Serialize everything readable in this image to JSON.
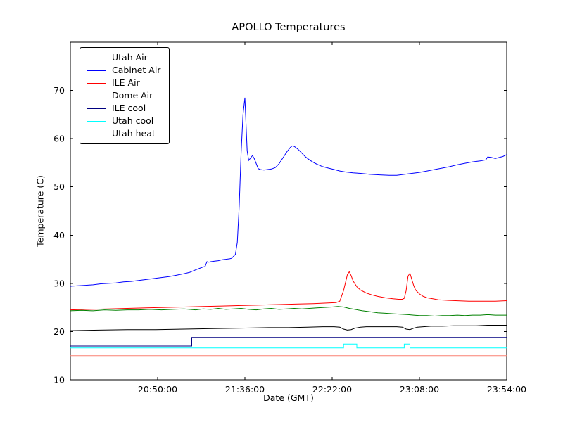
{
  "figure": {
    "background": "#ffffff"
  },
  "chart_data": {
    "type": "line",
    "title": "APOLLO Temperatures",
    "xlabel": "Date (GMT)",
    "ylabel": "Temperature (C)",
    "x_unit": "minutes after 20:04:00 GMT",
    "xlim": [
      0,
      230
    ],
    "ylim": [
      10,
      80
    ],
    "yticks": [
      10,
      20,
      30,
      40,
      50,
      60,
      70
    ],
    "xticks": [
      {
        "t": 46,
        "label": "20:50:00"
      },
      {
        "t": 92,
        "label": "21:36:00"
      },
      {
        "t": 138,
        "label": "22:22:00"
      },
      {
        "t": 184,
        "label": "23:08:00"
      },
      {
        "t": 230,
        "label": "23:54:00"
      }
    ],
    "grid": false,
    "legend_position": "upper-left",
    "frame_color": "#000000",
    "series": [
      {
        "name": "Utah Air",
        "color": "#000000",
        "points": [
          [
            0,
            20.2
          ],
          [
            15,
            20.3
          ],
          [
            30,
            20.4
          ],
          [
            45,
            20.4
          ],
          [
            60,
            20.5
          ],
          [
            75,
            20.6
          ],
          [
            90,
            20.7
          ],
          [
            105,
            20.8
          ],
          [
            115,
            20.8
          ],
          [
            125,
            20.9
          ],
          [
            133,
            21.0
          ],
          [
            139,
            21.0
          ],
          [
            142,
            20.9
          ],
          [
            144,
            20.5
          ],
          [
            146,
            20.3
          ],
          [
            148,
            20.4
          ],
          [
            150,
            20.7
          ],
          [
            153,
            20.9
          ],
          [
            156,
            21.0
          ],
          [
            162,
            21.0
          ],
          [
            168,
            21.0
          ],
          [
            172,
            21.0
          ],
          [
            175,
            20.9
          ],
          [
            177,
            20.5
          ],
          [
            179,
            20.4
          ],
          [
            181,
            20.7
          ],
          [
            183,
            20.9
          ],
          [
            186,
            21.0
          ],
          [
            190,
            21.1
          ],
          [
            196,
            21.1
          ],
          [
            202,
            21.2
          ],
          [
            208,
            21.2
          ],
          [
            214,
            21.2
          ],
          [
            220,
            21.3
          ],
          [
            225,
            21.3
          ],
          [
            230,
            21.3
          ]
        ]
      },
      {
        "name": "Cabinet Air",
        "color": "#0000ff",
        "points": [
          [
            0,
            29.4
          ],
          [
            4,
            29.5
          ],
          [
            8,
            29.6
          ],
          [
            12,
            29.7
          ],
          [
            16,
            29.9
          ],
          [
            20,
            30.0
          ],
          [
            24,
            30.1
          ],
          [
            28,
            30.3
          ],
          [
            32,
            30.4
          ],
          [
            36,
            30.6
          ],
          [
            40,
            30.8
          ],
          [
            44,
            31.0
          ],
          [
            48,
            31.2
          ],
          [
            52,
            31.4
          ],
          [
            56,
            31.7
          ],
          [
            60,
            32.0
          ],
          [
            63,
            32.3
          ],
          [
            66,
            32.8
          ],
          [
            68,
            33.1
          ],
          [
            70,
            33.4
          ],
          [
            71,
            33.5
          ],
          [
            72,
            34.5
          ],
          [
            73,
            34.4
          ],
          [
            74,
            34.5
          ],
          [
            76,
            34.6
          ],
          [
            78,
            34.7
          ],
          [
            80,
            34.9
          ],
          [
            82,
            35.0
          ],
          [
            84,
            35.1
          ],
          [
            85,
            35.2
          ],
          [
            86,
            35.6
          ],
          [
            87,
            36.0
          ],
          [
            88,
            38.5
          ],
          [
            89,
            46.0
          ],
          [
            90,
            57.0
          ],
          [
            91,
            65.0
          ],
          [
            92,
            68.5
          ],
          [
            92.6,
            63.0
          ],
          [
            93.2,
            57.5
          ],
          [
            94,
            55.5
          ],
          [
            95,
            56.0
          ],
          [
            96,
            56.5
          ],
          [
            97,
            55.8
          ],
          [
            98,
            54.8
          ],
          [
            99,
            53.8
          ],
          [
            100,
            53.6
          ],
          [
            102,
            53.5
          ],
          [
            104,
            53.6
          ],
          [
            106,
            53.7
          ],
          [
            108,
            54.0
          ],
          [
            110,
            54.8
          ],
          [
            112,
            56.0
          ],
          [
            114,
            57.2
          ],
          [
            116,
            58.2
          ],
          [
            117,
            58.5
          ],
          [
            118,
            58.4
          ],
          [
            120,
            57.8
          ],
          [
            122,
            57.0
          ],
          [
            124,
            56.2
          ],
          [
            126,
            55.6
          ],
          [
            128,
            55.1
          ],
          [
            130,
            54.7
          ],
          [
            133,
            54.2
          ],
          [
            136,
            53.9
          ],
          [
            139,
            53.6
          ],
          [
            142,
            53.3
          ],
          [
            145,
            53.1
          ],
          [
            149,
            52.9
          ],
          [
            153,
            52.8
          ],
          [
            158,
            52.6
          ],
          [
            163,
            52.5
          ],
          [
            168,
            52.4
          ],
          [
            172,
            52.4
          ],
          [
            176,
            52.6
          ],
          [
            180,
            52.8
          ],
          [
            184,
            53.0
          ],
          [
            188,
            53.3
          ],
          [
            192,
            53.6
          ],
          [
            196,
            53.9
          ],
          [
            200,
            54.2
          ],
          [
            204,
            54.6
          ],
          [
            208,
            54.9
          ],
          [
            212,
            55.2
          ],
          [
            216,
            55.4
          ],
          [
            219,
            55.6
          ],
          [
            220,
            56.2
          ],
          [
            222,
            56.1
          ],
          [
            224,
            55.9
          ],
          [
            226,
            56.1
          ],
          [
            228,
            56.3
          ],
          [
            230,
            56.7
          ]
        ]
      },
      {
        "name": "ILE Air",
        "color": "#ff0000",
        "points": [
          [
            0,
            24.5
          ],
          [
            10,
            24.6
          ],
          [
            20,
            24.7
          ],
          [
            30,
            24.8
          ],
          [
            40,
            24.9
          ],
          [
            50,
            25.0
          ],
          [
            60,
            25.1
          ],
          [
            70,
            25.2
          ],
          [
            80,
            25.3
          ],
          [
            90,
            25.4
          ],
          [
            100,
            25.5
          ],
          [
            110,
            25.6
          ],
          [
            120,
            25.7
          ],
          [
            128,
            25.8
          ],
          [
            134,
            25.9
          ],
          [
            140,
            26.0
          ],
          [
            142,
            26.3
          ],
          [
            144,
            28.5
          ],
          [
            146,
            31.8
          ],
          [
            147,
            32.4
          ],
          [
            148,
            31.6
          ],
          [
            149,
            30.5
          ],
          [
            151,
            29.3
          ],
          [
            153,
            28.6
          ],
          [
            156,
            28.0
          ],
          [
            159,
            27.6
          ],
          [
            162,
            27.3
          ],
          [
            166,
            27.0
          ],
          [
            170,
            26.8
          ],
          [
            173,
            26.7
          ],
          [
            175,
            26.7
          ],
          [
            176,
            26.9
          ],
          [
            177,
            28.5
          ],
          [
            178,
            31.5
          ],
          [
            179,
            32.1
          ],
          [
            180,
            30.8
          ],
          [
            181,
            29.5
          ],
          [
            182,
            28.6
          ],
          [
            184,
            27.8
          ],
          [
            186,
            27.3
          ],
          [
            188,
            27.0
          ],
          [
            191,
            26.8
          ],
          [
            194,
            26.6
          ],
          [
            198,
            26.5
          ],
          [
            203,
            26.4
          ],
          [
            210,
            26.3
          ],
          [
            218,
            26.3
          ],
          [
            224,
            26.3
          ],
          [
            230,
            26.4
          ]
        ]
      },
      {
        "name": "Dome Air",
        "color": "#008000",
        "points": [
          [
            0,
            24.3
          ],
          [
            6,
            24.4
          ],
          [
            12,
            24.3
          ],
          [
            18,
            24.5
          ],
          [
            24,
            24.4
          ],
          [
            30,
            24.5
          ],
          [
            36,
            24.5
          ],
          [
            42,
            24.6
          ],
          [
            48,
            24.5
          ],
          [
            54,
            24.6
          ],
          [
            60,
            24.7
          ],
          [
            66,
            24.5
          ],
          [
            70,
            24.7
          ],
          [
            74,
            24.6
          ],
          [
            78,
            24.8
          ],
          [
            82,
            24.6
          ],
          [
            86,
            24.7
          ],
          [
            90,
            24.8
          ],
          [
            94,
            24.6
          ],
          [
            98,
            24.5
          ],
          [
            102,
            24.7
          ],
          [
            106,
            24.8
          ],
          [
            110,
            24.6
          ],
          [
            114,
            24.7
          ],
          [
            118,
            24.8
          ],
          [
            122,
            24.7
          ],
          [
            126,
            24.8
          ],
          [
            130,
            24.9
          ],
          [
            134,
            25.0
          ],
          [
            138,
            25.1
          ],
          [
            141,
            25.2
          ],
          [
            144,
            25.1
          ],
          [
            147,
            24.8
          ],
          [
            150,
            24.6
          ],
          [
            154,
            24.3
          ],
          [
            158,
            24.1
          ],
          [
            162,
            23.9
          ],
          [
            166,
            23.8
          ],
          [
            170,
            23.7
          ],
          [
            174,
            23.6
          ],
          [
            178,
            23.5
          ],
          [
            181,
            23.4
          ],
          [
            184,
            23.3
          ],
          [
            188,
            23.3
          ],
          [
            192,
            23.2
          ],
          [
            196,
            23.3
          ],
          [
            200,
            23.3
          ],
          [
            204,
            23.4
          ],
          [
            208,
            23.3
          ],
          [
            212,
            23.4
          ],
          [
            216,
            23.4
          ],
          [
            220,
            23.5
          ],
          [
            224,
            23.4
          ],
          [
            227,
            23.4
          ],
          [
            230,
            23.4
          ]
        ]
      },
      {
        "name": "ILE cool",
        "color": "#000080",
        "points": [
          [
            0,
            17.0
          ],
          [
            64,
            17.0
          ],
          [
            64,
            18.8
          ],
          [
            230,
            18.8
          ]
        ]
      },
      {
        "name": "Utah cool",
        "color": "#00ffff",
        "points": [
          [
            0,
            16.6
          ],
          [
            144,
            16.6
          ],
          [
            144,
            17.4
          ],
          [
            151,
            17.4
          ],
          [
            151,
            16.6
          ],
          [
            176,
            16.6
          ],
          [
            176,
            17.4
          ],
          [
            179,
            17.4
          ],
          [
            179,
            16.6
          ],
          [
            230,
            16.6
          ]
        ]
      },
      {
        "name": "Utah heat",
        "color": "#fa8072",
        "points": [
          [
            0,
            15.0
          ],
          [
            230,
            15.0
          ]
        ]
      }
    ]
  }
}
